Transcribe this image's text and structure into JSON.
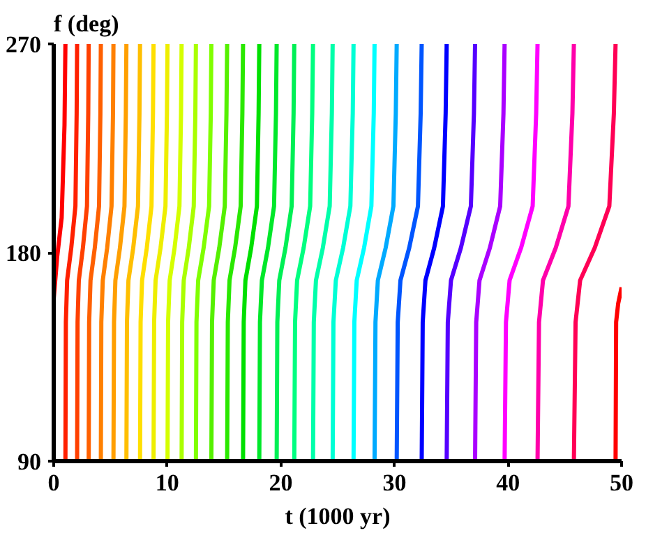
{
  "chart_data": {
    "type": "line",
    "xlabel": "t (1000 yr)",
    "ylabel": "f (deg)",
    "xlim": [
      0,
      50
    ],
    "ylim": [
      90,
      270
    ],
    "xticks": [
      0,
      10,
      20,
      30,
      40,
      50
    ],
    "yticks": [
      90,
      180,
      270
    ],
    "grid": false,
    "line_style": "solid",
    "marker": "none",
    "series": [
      {
        "color": "#ff0000",
        "x": [
          0,
          0.3,
          0.7,
          0.95,
          1.03
        ],
        "values": [
          160,
          178,
          195,
          235,
          270
        ]
      },
      {
        "color": "#ff2000",
        "x": [
          1.03,
          1.07,
          1.18,
          1.545,
          1.91,
          2.02,
          2.06
        ],
        "values": [
          90,
          150,
          168,
          182,
          200,
          240,
          270
        ]
      },
      {
        "color": "#ff4000",
        "x": [
          2.06,
          2.1,
          2.21,
          2.57,
          2.93,
          3.04,
          3.08
        ],
        "values": [
          90,
          150,
          168,
          182,
          200,
          240,
          270
        ]
      },
      {
        "color": "#ff6000",
        "x": [
          3.08,
          3.12,
          3.24,
          3.615,
          3.99,
          4.11,
          4.15
        ],
        "values": [
          90,
          150,
          168,
          182,
          200,
          240,
          270
        ]
      },
      {
        "color": "#ff8000",
        "x": [
          4.15,
          4.19,
          4.32,
          4.705,
          5.09,
          5.22,
          5.26
        ],
        "values": [
          90,
          150,
          168,
          182,
          200,
          240,
          270
        ]
      },
      {
        "color": "#ff9f00",
        "x": [
          5.26,
          5.31,
          5.43,
          5.83,
          6.23,
          6.35,
          6.4
        ],
        "values": [
          90,
          150,
          168,
          182,
          200,
          240,
          270
        ]
      },
      {
        "color": "#ffbf00",
        "x": [
          6.4,
          6.45,
          6.58,
          7.0,
          7.42,
          7.55,
          7.6
        ],
        "values": [
          90,
          150,
          168,
          182,
          200,
          240,
          270
        ]
      },
      {
        "color": "#ffdf00",
        "x": [
          7.6,
          7.65,
          7.78,
          8.195,
          8.61,
          8.74,
          8.79
        ],
        "values": [
          90,
          150,
          168,
          182,
          200,
          240,
          270
        ]
      },
      {
        "color": "#eeee00",
        "x": [
          8.79,
          8.84,
          8.97,
          9.405,
          9.84,
          9.97,
          10.02
        ],
        "values": [
          90,
          150,
          168,
          182,
          200,
          240,
          270
        ]
      },
      {
        "color": "#d5ff00",
        "x": [
          10.02,
          10.07,
          10.21,
          10.64,
          11.07,
          11.21,
          11.26
        ],
        "values": [
          90,
          150,
          168,
          182,
          200,
          240,
          270
        ]
      },
      {
        "color": "#aaff00",
        "x": [
          11.26,
          11.31,
          11.45,
          11.89,
          12.33,
          12.47,
          12.52
        ],
        "values": [
          90,
          150,
          168,
          182,
          200,
          240,
          270
        ]
      },
      {
        "color": "#80ff00",
        "x": [
          12.52,
          12.57,
          12.72,
          13.2,
          13.68,
          13.83,
          13.88
        ],
        "values": [
          90,
          150,
          168,
          182,
          200,
          240,
          270
        ]
      },
      {
        "color": "#55f000",
        "x": [
          13.88,
          13.94,
          14.09,
          14.575,
          15.06,
          15.21,
          15.27
        ],
        "values": [
          90,
          150,
          168,
          182,
          200,
          240,
          270
        ]
      },
      {
        "color": "#2ae800",
        "x": [
          15.27,
          15.33,
          15.48,
          15.97,
          16.46,
          16.61,
          16.67
        ],
        "values": [
          90,
          150,
          168,
          182,
          200,
          240,
          270
        ]
      },
      {
        "color": "#00e000",
        "x": [
          16.67,
          16.73,
          16.88,
          17.385,
          17.89,
          18.04,
          18.1
        ],
        "values": [
          90,
          150,
          168,
          182,
          200,
          240,
          270
        ]
      },
      {
        "color": "#00e82a",
        "x": [
          18.1,
          18.16,
          18.33,
          18.865,
          19.4,
          19.57,
          19.63
        ],
        "values": [
          90,
          150,
          168,
          182,
          200,
          240,
          270
        ]
      },
      {
        "color": "#00f055",
        "x": [
          19.63,
          19.69,
          19.86,
          20.405,
          20.95,
          21.12,
          21.18
        ],
        "values": [
          90,
          150,
          168,
          182,
          200,
          240,
          270
        ]
      },
      {
        "color": "#00ff80",
        "x": [
          21.18,
          21.25,
          21.43,
          22.005,
          22.58,
          22.76,
          22.83
        ],
        "values": [
          90,
          150,
          168,
          182,
          200,
          240,
          270
        ]
      },
      {
        "color": "#00ffaa",
        "x": [
          22.83,
          22.9,
          23.09,
          23.695,
          24.3,
          24.49,
          24.56
        ],
        "values": [
          90,
          150,
          168,
          182,
          200,
          240,
          270
        ]
      },
      {
        "color": "#00ffd5",
        "x": [
          24.56,
          24.63,
          24.84,
          25.48,
          26.12,
          26.33,
          26.4
        ],
        "values": [
          90,
          150,
          168,
          182,
          200,
          240,
          270
        ]
      },
      {
        "color": "#00ffff",
        "x": [
          26.4,
          26.47,
          26.68,
          27.325,
          27.97,
          28.18,
          28.25
        ],
        "values": [
          90,
          150,
          168,
          182,
          200,
          240,
          270
        ]
      },
      {
        "color": "#00aaff",
        "x": [
          28.25,
          28.33,
          28.54,
          29.225,
          29.91,
          30.12,
          30.2
        ],
        "values": [
          90,
          150,
          168,
          182,
          200,
          240,
          270
        ]
      },
      {
        "color": "#0055ff",
        "x": [
          30.2,
          30.29,
          30.53,
          31.3,
          32.07,
          32.31,
          32.4
        ],
        "values": [
          90,
          150,
          168,
          182,
          200,
          240,
          270
        ]
      },
      {
        "color": "#0000ff",
        "x": [
          32.4,
          32.49,
          32.73,
          33.5,
          34.27,
          34.51,
          34.6
        ],
        "values": [
          90,
          150,
          168,
          182,
          200,
          240,
          270
        ]
      },
      {
        "color": "#5500ff",
        "x": [
          34.6,
          34.7,
          34.98,
          35.85,
          36.73,
          37.0,
          37.1
        ],
        "values": [
          90,
          150,
          168,
          182,
          200,
          240,
          270
        ]
      },
      {
        "color": "#aa00ff",
        "x": [
          37.1,
          37.2,
          37.49,
          38.4,
          39.31,
          39.6,
          39.7
        ],
        "values": [
          90,
          150,
          168,
          182,
          200,
          240,
          270
        ]
      },
      {
        "color": "#ff00ff",
        "x": [
          39.7,
          39.82,
          40.14,
          41.15,
          42.17,
          42.48,
          42.6
        ],
        "values": [
          90,
          150,
          168,
          182,
          200,
          240,
          270
        ]
      },
      {
        "color": "#ff00aa",
        "x": [
          42.6,
          42.73,
          43.08,
          44.2,
          45.32,
          45.67,
          45.8
        ],
        "values": [
          90,
          150,
          168,
          182,
          200,
          240,
          270
        ]
      },
      {
        "color": "#ff0055",
        "x": [
          45.8,
          45.95,
          46.35,
          47.635,
          48.92,
          49.32,
          49.47
        ],
        "values": [
          90,
          150,
          168,
          182,
          200,
          240,
          270
        ]
      },
      {
        "color": "#ff0000",
        "x": [
          49.47,
          49.52,
          49.7,
          50
        ],
        "values": [
          90,
          150,
          158,
          165
        ]
      }
    ]
  }
}
